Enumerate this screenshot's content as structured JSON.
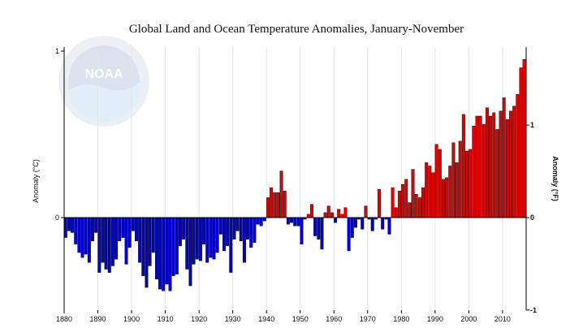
{
  "chart_data": {
    "type": "bar",
    "title": "Global Land and Ocean Temperature Anomalies, January-November",
    "ylabel_left": "Anomaly (°C)",
    "ylabel_right": "Anomaly (°F)",
    "xlabel": "",
    "xlim": [
      1880,
      2016
    ],
    "ylim_c": [
      -0.55,
      1.0
    ],
    "left_ticks": [
      {
        "value": 1,
        "label": "1"
      },
      {
        "value": 0,
        "label": "0"
      }
    ],
    "right_ticks": [
      {
        "value": 1,
        "label": "1"
      },
      {
        "value": 0,
        "label": "0"
      },
      {
        "value": -1,
        "label": "-1"
      }
    ],
    "x_ticks": [
      1880,
      1890,
      1900,
      1910,
      1920,
      1930,
      1940,
      1950,
      1960,
      1970,
      1980,
      1990,
      2000,
      2010
    ],
    "grid": "vertical",
    "positive_color": "#dd0000",
    "negative_color": "#0000cc",
    "watermark": "NOAA",
    "x": [
      1880,
      1881,
      1882,
      1883,
      1884,
      1885,
      1886,
      1887,
      1888,
      1889,
      1890,
      1891,
      1892,
      1893,
      1894,
      1895,
      1896,
      1897,
      1898,
      1899,
      1900,
      1901,
      1902,
      1903,
      1904,
      1905,
      1906,
      1907,
      1908,
      1909,
      1910,
      1911,
      1912,
      1913,
      1914,
      1915,
      1916,
      1917,
      1918,
      1919,
      1920,
      1921,
      1922,
      1923,
      1924,
      1925,
      1926,
      1927,
      1928,
      1929,
      1930,
      1931,
      1932,
      1933,
      1934,
      1935,
      1936,
      1937,
      1938,
      1939,
      1940,
      1941,
      1942,
      1943,
      1944,
      1945,
      1946,
      1947,
      1948,
      1949,
      1950,
      1951,
      1952,
      1953,
      1954,
      1955,
      1956,
      1957,
      1958,
      1959,
      1960,
      1961,
      1962,
      1963,
      1964,
      1965,
      1966,
      1967,
      1968,
      1969,
      1970,
      1971,
      1972,
      1973,
      1974,
      1975,
      1976,
      1977,
      1978,
      1979,
      1980,
      1981,
      1982,
      1983,
      1984,
      1985,
      1986,
      1987,
      1988,
      1989,
      1990,
      1991,
      1992,
      1993,
      1994,
      1995,
      1996,
      1997,
      1998,
      1999,
      2000,
      2001,
      2002,
      2003,
      2004,
      2005,
      2006,
      2007,
      2008,
      2009,
      2010,
      2011,
      2012,
      2013,
      2014,
      2015,
      2016
    ],
    "values": [
      -0.12,
      -0.08,
      -0.09,
      -0.16,
      -0.21,
      -0.24,
      -0.22,
      -0.27,
      -0.14,
      -0.09,
      -0.33,
      -0.27,
      -0.31,
      -0.33,
      -0.29,
      -0.25,
      -0.14,
      -0.12,
      -0.28,
      -0.18,
      -0.08,
      -0.14,
      -0.27,
      -0.35,
      -0.42,
      -0.29,
      -0.21,
      -0.37,
      -0.43,
      -0.44,
      -0.4,
      -0.44,
      -0.35,
      -0.34,
      -0.17,
      -0.13,
      -0.31,
      -0.41,
      -0.28,
      -0.25,
      -0.26,
      -0.16,
      -0.27,
      -0.24,
      -0.25,
      -0.21,
      -0.1,
      -0.2,
      -0.17,
      -0.33,
      -0.13,
      -0.08,
      -0.14,
      -0.27,
      -0.13,
      -0.18,
      -0.15,
      -0.04,
      -0.05,
      -0.02,
      0.12,
      0.18,
      0.15,
      0.15,
      0.28,
      0.16,
      -0.04,
      -0.03,
      -0.05,
      -0.05,
      -0.16,
      -0.01,
      0.02,
      0.08,
      -0.11,
      -0.13,
      -0.19,
      0.03,
      0.07,
      0.03,
      -0.03,
      0.05,
      0.02,
      0.06,
      -0.2,
      -0.12,
      -0.06,
      -0.01,
      -0.07,
      0.07,
      -0.01,
      -0.08,
      -0.01,
      0.17,
      -0.07,
      -0.01,
      -0.1,
      0.18,
      0.06,
      0.16,
      0.2,
      0.23,
      0.09,
      0.29,
      0.14,
      0.12,
      0.18,
      0.33,
      0.31,
      0.27,
      0.44,
      0.41,
      0.23,
      0.24,
      0.31,
      0.45,
      0.33,
      0.46,
      0.62,
      0.4,
      0.41,
      0.55,
      0.61,
      0.61,
      0.56,
      0.66,
      0.61,
      0.63,
      0.53,
      0.64,
      0.72,
      0.59,
      0.64,
      0.67,
      0.74,
      0.9,
      0.95
    ]
  }
}
